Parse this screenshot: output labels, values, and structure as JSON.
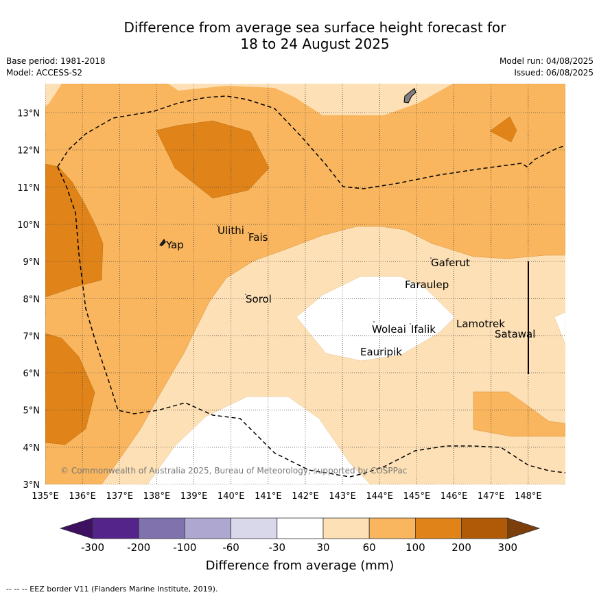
{
  "title_line1": "Difference from average sea surface height forecast for",
  "title_line2": "18 to 24 August 2025",
  "base_period": "Base period: 1981-2018",
  "model": "Model: ACCESS-S2",
  "model_run": "Model run: 04/08/2025",
  "issued": "Issued: 06/08/2025",
  "lat_ticks": [
    "13°N",
    "12°N",
    "11°N",
    "10°N",
    "9°N",
    "8°N",
    "7°N",
    "6°N",
    "5°N",
    "4°N",
    "3°N"
  ],
  "lon_ticks": [
    "135°E",
    "136°E",
    "137°E",
    "138°E",
    "139°E",
    "140°E",
    "141°E",
    "142°E",
    "143°E",
    "144°E",
    "145°E",
    "146°E",
    "147°E",
    "148°E"
  ],
  "places": [
    "Yap",
    "Ulithi",
    "Fais",
    "Gaferut",
    "Faraulep",
    "Sorol",
    "Woleai",
    "Ifalik",
    "Lamotrek",
    "Satawal",
    "Eauripik"
  ],
  "copyright": "© Commonwealth of Australia 2025, Bureau of Meteorology, supported by COSPPac",
  "colorbar": {
    "ticks": [
      "-300",
      "-200",
      "-100",
      "-60",
      "-30",
      "30",
      "60",
      "100",
      "200",
      "300"
    ],
    "label": "Difference from average (mm)",
    "colors": [
      "#3d1060",
      "#54248a",
      "#7f72ad",
      "#aea7d0",
      "#d8d8ea",
      "#ffffff",
      "#fde0b5",
      "#f9b65e",
      "#e08318",
      "#b05a08",
      "#7c3f0c"
    ]
  },
  "footnote": "--  --  -- EEZ border V11 (Flanders Marine Institute, 2019).",
  "map_colors": {
    "c30_60": "#fde0b5",
    "c60_100": "#f9b65e",
    "c100_200": "#e08318",
    "land": "#808080"
  }
}
